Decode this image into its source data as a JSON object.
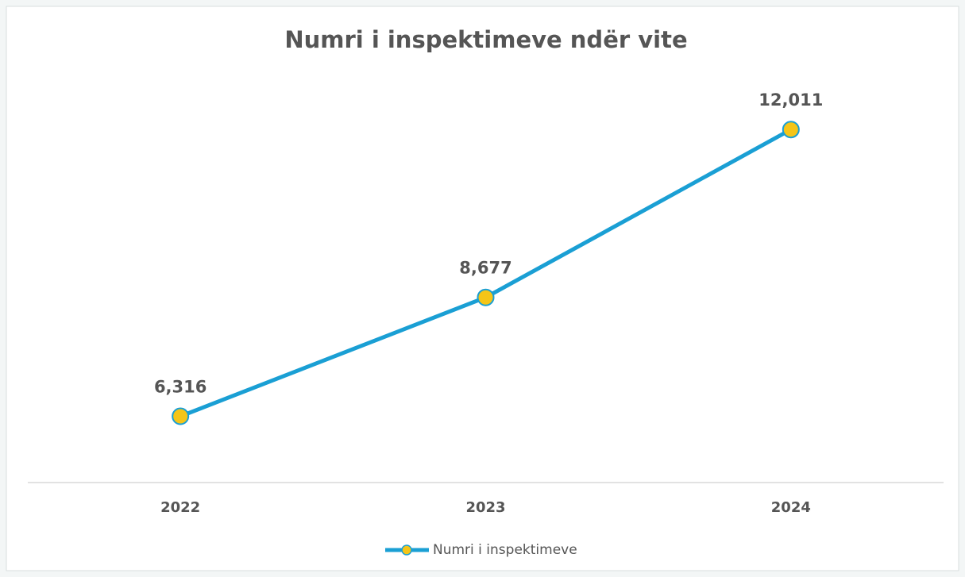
{
  "chart_data": {
    "type": "line",
    "title": "Numri i inspektimeve ndër vite",
    "categories": [
      "2022",
      "2023",
      "2024"
    ],
    "series": [
      {
        "name": "Numri i inspektimeve",
        "color": "#1a9fd4",
        "marker_color": "#f5c518",
        "values": [
          6316,
          8677,
          12011
        ],
        "value_labels": [
          "6,316",
          "8,677",
          "12,011"
        ]
      }
    ],
    "ylim": [
      5000,
      14000
    ],
    "legend": "bottom"
  }
}
